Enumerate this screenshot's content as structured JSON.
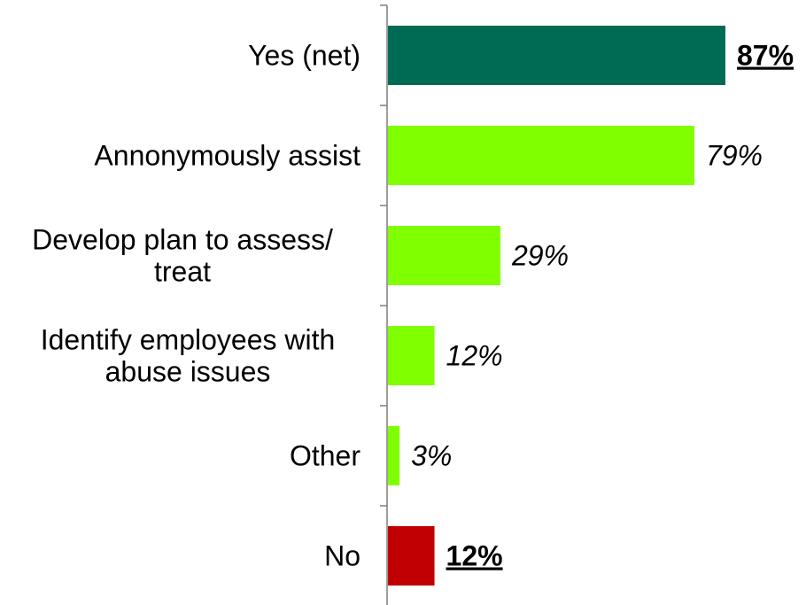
{
  "chart_data": {
    "type": "bar",
    "orientation": "horizontal",
    "title": "",
    "xlabel": "",
    "ylabel": "",
    "categories": [
      "Yes (net)",
      "Annonymously assist",
      "Develop plan to assess/ treat",
      "Identify employees with abuse issues",
      "Other",
      "No"
    ],
    "category_lines": [
      [
        "Yes (net)"
      ],
      [
        "Annonymously assist"
      ],
      [
        "Develop plan to assess/",
        "treat"
      ],
      [
        "Identify employees with",
        "abuse issues"
      ],
      [
        "Other"
      ],
      [
        "No"
      ]
    ],
    "values": [
      87,
      79,
      29,
      12,
      3,
      12
    ],
    "value_labels": [
      "87%",
      "79%",
      "29%",
      "12%",
      "3%",
      "12%"
    ],
    "value_label_styles": [
      "bold-underline",
      "italic",
      "italic",
      "italic",
      "italic",
      "bold-underline"
    ],
    "colors": [
      "#006B54",
      "#80FF00",
      "#80FF00",
      "#80FF00",
      "#80FF00",
      "#C00000"
    ],
    "xlim": [
      0,
      100
    ],
    "grid": false,
    "legend": "none"
  }
}
